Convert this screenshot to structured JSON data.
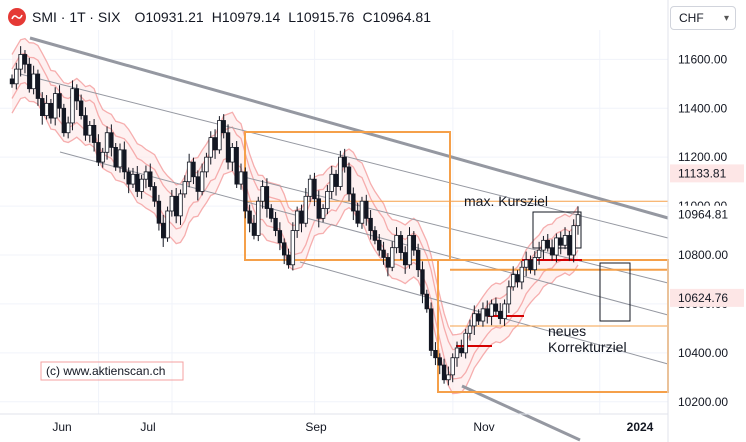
{
  "header": {
    "symbol": "SMI · 1T · SIX",
    "open_label": "O",
    "open": "10931.21",
    "high_label": "H",
    "high": "10979.14",
    "low_label": "L",
    "low": "10915.76",
    "close_label": "C",
    "close": "10964.81"
  },
  "currency": {
    "value": "CHF"
  },
  "watermark": "(c) www.aktienscan.ch",
  "colors": {
    "up": "#ffffff",
    "down": "#131722",
    "channel_bold": "#9598a1",
    "channel_thin": "#9598a1",
    "orange": "#f5a04a",
    "red_band": "#f49b9b",
    "red_line": "#d50000",
    "label_red": "#fde6e6"
  },
  "chart_data": {
    "type": "candlestick",
    "title": "",
    "ylim": [
      10150,
      11720
    ],
    "yticks": [
      10200,
      10400,
      10600,
      10800,
      11000,
      11200,
      11400,
      11600
    ],
    "ytick_labels": [
      "10200.00",
      "10400.00",
      "10600.00",
      "10800.00",
      "11000.00",
      "11200.00",
      "11400.00",
      "11600.00"
    ],
    "xticks": [
      "Jun",
      "Jul",
      "Sep",
      "Nov",
      "2024"
    ],
    "price_labels": [
      {
        "value": 11133.81,
        "text": "11133.81",
        "style": "red"
      },
      {
        "value": 10964.81,
        "text": "10964.81",
        "style": "plain"
      },
      {
        "value": 10624.76,
        "text": "10624.76",
        "style": "red"
      }
    ],
    "annotations": {
      "target_max": "max. Kursziel",
      "target_new_line1": "neues",
      "target_new_line2": "Korrekturziel"
    },
    "levels": {
      "upper": 11020,
      "middle": 10740,
      "lower": 10510
    },
    "closes": [
      11500,
      11560,
      11620,
      11580,
      11480,
      11540,
      11440,
      11370,
      11420,
      11360,
      11460,
      11400,
      11300,
      11340,
      11480,
      11430,
      11370,
      11290,
      11330,
      11260,
      11180,
      11220,
      11300,
      11240,
      11160,
      11230,
      11140,
      11090,
      11130,
      11060,
      11110,
      11140,
      11080,
      11020,
      10930,
      10870,
      10980,
      11040,
      10960,
      11050,
      11100,
      11180,
      11120,
      11060,
      11140,
      11200,
      11280,
      11230,
      11350,
      11300,
      11180,
      11240,
      11090,
      11140,
      10980,
      10930,
      10880,
      11020,
      11080,
      10990,
      10950,
      10900,
      10850,
      10800,
      10760,
      10900,
      10980,
      10930,
      11040,
      11110,
      11030,
      10950,
      10990,
      11060,
      11130,
      11080,
      11200,
      11160,
      11050,
      10980,
      10930,
      11020,
      10950,
      10900,
      10860,
      10820,
      10790,
      10750,
      10830,
      10880,
      10810,
      10760,
      10880,
      10820,
      10740,
      10640,
      10580,
      10410,
      10380,
      10350,
      10290,
      10310,
      10380,
      10420,
      10400,
      10480,
      10510,
      10560,
      10530,
      10580,
      10550,
      10600,
      10570,
      10540,
      10600,
      10670,
      10720,
      10690,
      10750,
      10780,
      10740,
      10790,
      10820,
      10860,
      10830,
      10800,
      10870,
      10840,
      10880,
      10800,
      10920,
      10964.81
    ]
  }
}
